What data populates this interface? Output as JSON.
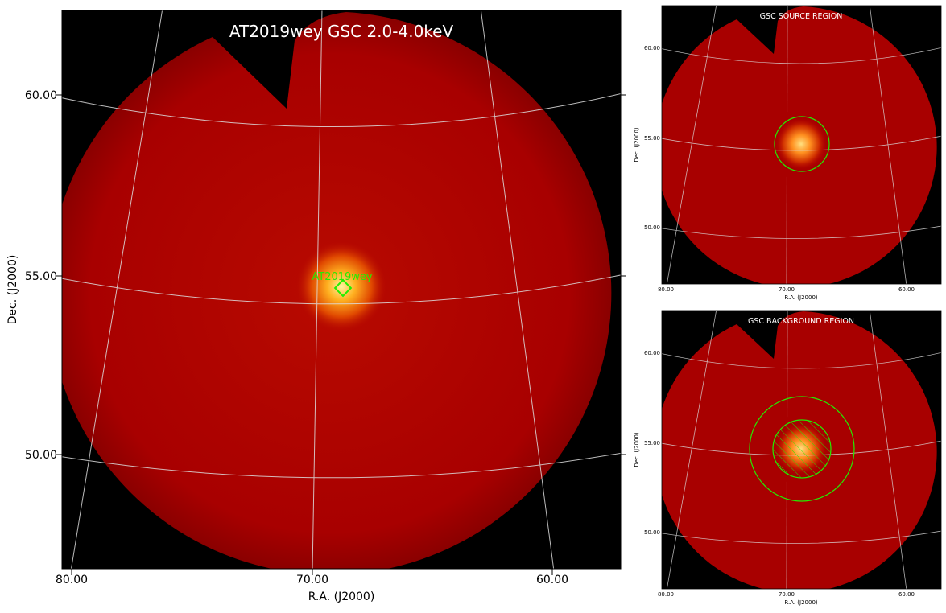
{
  "main": {
    "title": "AT2019wey GSC 2.0-4.0keV",
    "xlabel": "R.A. (J2000)",
    "ylabel": "Dec. (J2000)",
    "x_ticks": [
      "80.00",
      "70.00",
      "60.00"
    ],
    "y_ticks": [
      "60.00",
      "55.00",
      "50.00"
    ],
    "marker_label": "AT2019wey",
    "colors": {
      "marker": "#22ee00",
      "grid": "#dddddd",
      "title": "#ffffff"
    }
  },
  "source_panel": {
    "title": "GSC SOURCE REGION",
    "xlabel": "R.A. (J2000)",
    "ylabel": "Dec. (J2000)",
    "x_ticks": [
      "80.00",
      "70.00",
      "60.00"
    ],
    "y_ticks": [
      "60.00",
      "55.00",
      "50.00"
    ]
  },
  "background_panel": {
    "title": "GSC BACKGROUND REGION",
    "xlabel": "R.A. (J2000)",
    "ylabel": "Dec. (J2000)",
    "x_ticks": [
      "80.00",
      "70.00",
      "60.00"
    ],
    "y_ticks": [
      "60.00",
      "55.00",
      "50.00"
    ]
  }
}
